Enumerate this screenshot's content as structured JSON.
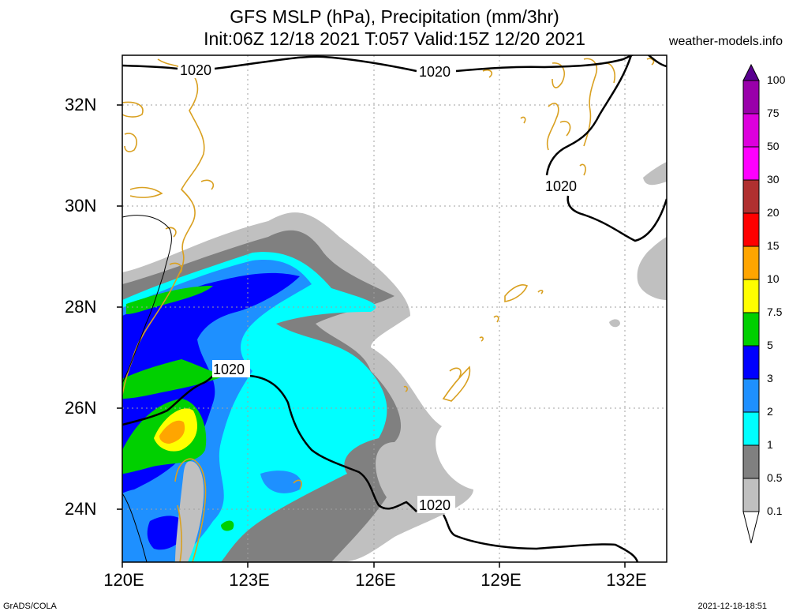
{
  "title": {
    "line1": "GFS MSLP (hPa), Precipitation (mm/3hr)",
    "line2": "Init:06Z 12/18 2021 T:057 Valid:15Z 12/20 2021",
    "credit": "weather-models.info"
  },
  "map": {
    "region": "East China Sea / Taiwan",
    "lon_range": [
      120,
      133
    ],
    "lat_range": [
      23,
      33
    ],
    "y_labels": [
      "32N",
      "30N",
      "28N",
      "26N",
      "24N"
    ],
    "x_labels": [
      "120E",
      "123E",
      "126E",
      "129E",
      "132E"
    ],
    "gridlines": "dotted",
    "isobar_value": "1020",
    "isobar_labels": [
      "1020",
      "1020",
      "1020",
      "1020",
      "1020"
    ],
    "coastline_color": "#d9a020",
    "isobar_color": "#000000"
  },
  "legend": {
    "levels": [
      "0.1",
      "0.5",
      "1",
      "2",
      "3",
      "5",
      "7.5",
      "10",
      "15",
      "20",
      "30",
      "50",
      "75",
      "100"
    ],
    "colors": [
      "#c0c0c0",
      "#808080",
      "#00ffff",
      "#1e90ff",
      "#0000ff",
      "#00d000",
      "#ffff00",
      "#ffa500",
      "#ff0000",
      "#b03030",
      "#ff00ff",
      "#dd00dd",
      "#9900aa",
      "#5a0090"
    ]
  },
  "footer": {
    "left": "GrADS/COLA",
    "right": "2021-12-18-18:51"
  }
}
